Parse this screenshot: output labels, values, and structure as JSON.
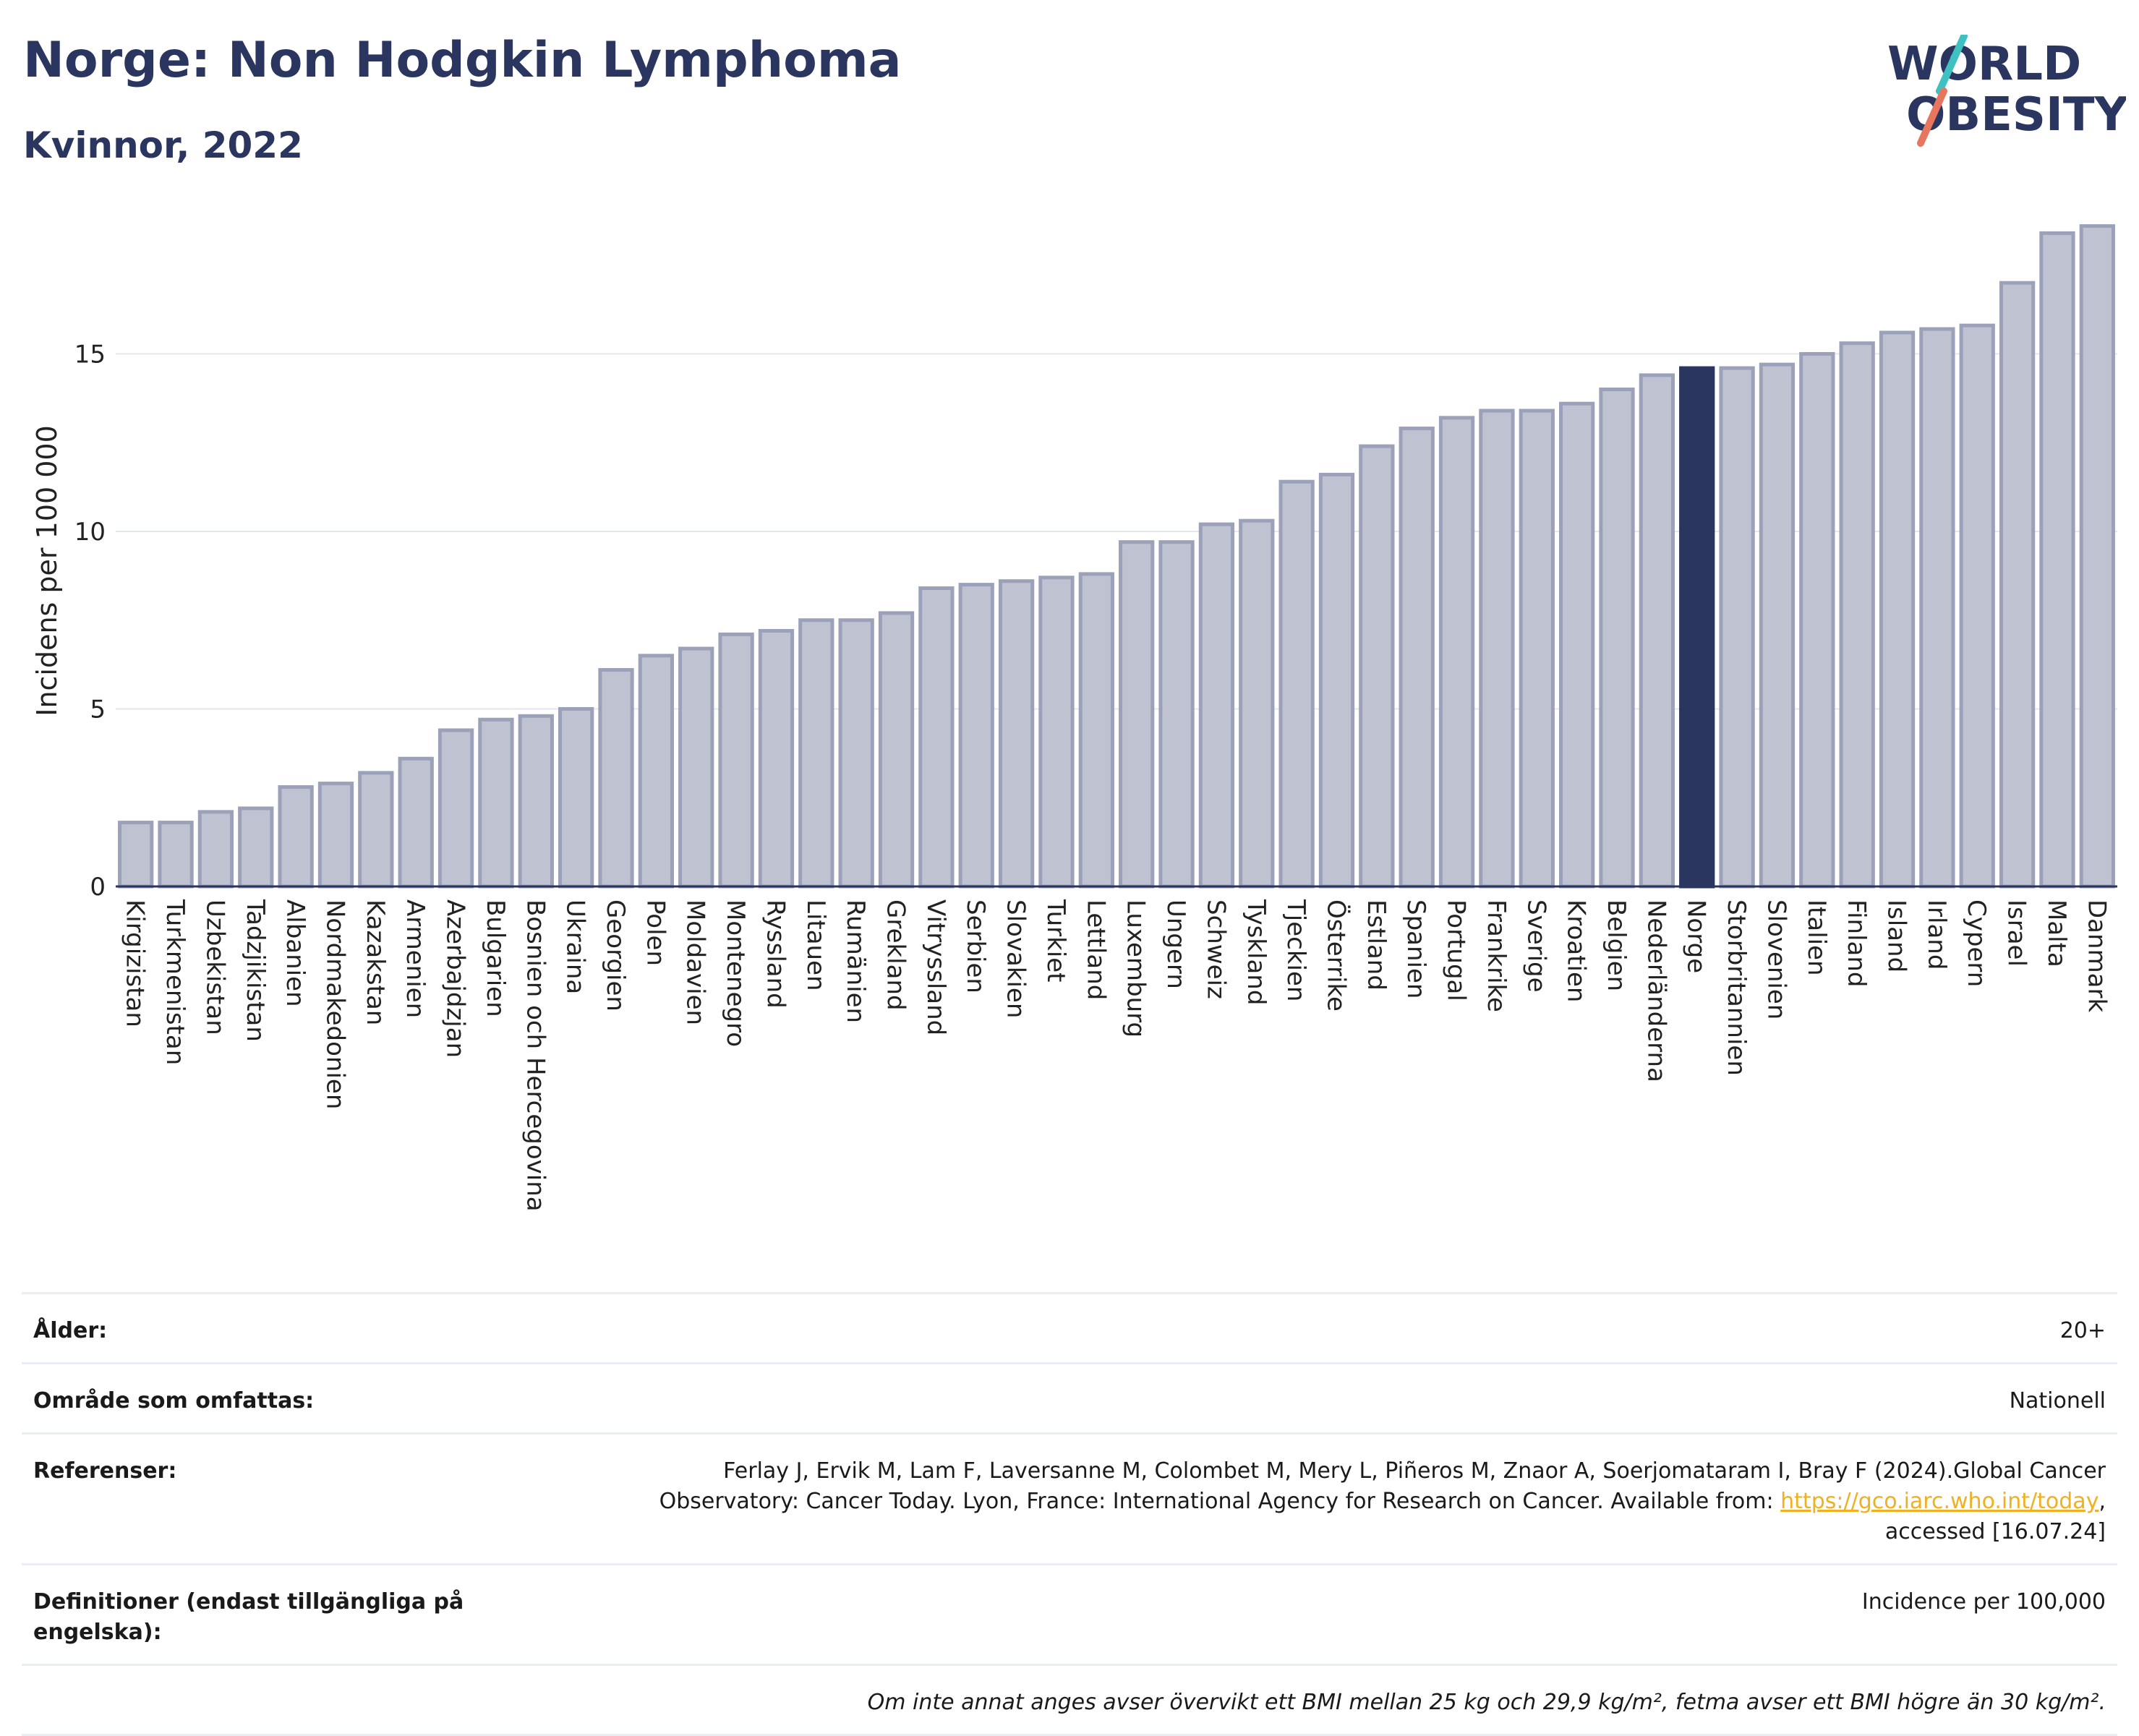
{
  "header": {
    "title": "Norge: Non Hodgkin Lymphoma",
    "subtitle": "Kvinnor, 2022"
  },
  "logo": {
    "line1": "WORLD",
    "line2": "OBESITY",
    "accent_colors": [
      "#3ec1c1",
      "#e8765f"
    ]
  },
  "colors": {
    "bar": "#bfc3d1",
    "bar_border": "#9aa1b9",
    "highlight": "#2a3560",
    "grid": "#e4e7ee",
    "axis": "#2a3560"
  },
  "chart_data": {
    "type": "bar",
    "title": "Norge: Non Hodgkin Lymphoma",
    "subtitle": "Kvinnor, 2022",
    "ylabel": "Incidens per 100 000",
    "xlabel": "",
    "ylim": [
      0,
      19
    ],
    "yticks": [
      0,
      5,
      10,
      15
    ],
    "grid": true,
    "highlight": "Norge",
    "categories": [
      "Kirgizistan",
      "Turkmenistan",
      "Uzbekistan",
      "Tadzjikistan",
      "Albanien",
      "Nordmakedonien",
      "Kazakstan",
      "Armenien",
      "Azerbajdzjan",
      "Bulgarien",
      "Bosnien och Hercegovina",
      "Ukraina",
      "Georgien",
      "Polen",
      "Moldavien",
      "Montenegro",
      "Ryssland",
      "Litauen",
      "Rumänien",
      "Grekland",
      "Vitryssland",
      "Serbien",
      "Slovakien",
      "Turkiet",
      "Lettland",
      "Luxemburg",
      "Ungern",
      "Schweiz",
      "Tyskland",
      "Tjeckien",
      "Österrike",
      "Estland",
      "Spanien",
      "Portugal",
      "Frankrike",
      "Sverige",
      "Kroatien",
      "Belgien",
      "Nederländerna",
      "Norge",
      "Storbritannien",
      "Slovenien",
      "Italien",
      "Finland",
      "Island",
      "Irland",
      "Cypern",
      "Israel",
      "Malta",
      "Danmark"
    ],
    "values": [
      1.8,
      1.8,
      2.1,
      2.2,
      2.8,
      2.9,
      3.2,
      3.6,
      4.4,
      4.7,
      4.8,
      5.0,
      6.1,
      6.5,
      6.7,
      7.1,
      7.2,
      7.5,
      7.5,
      7.7,
      8.4,
      8.5,
      8.6,
      8.7,
      8.8,
      9.7,
      9.7,
      10.2,
      10.3,
      11.4,
      11.6,
      12.4,
      12.9,
      13.2,
      13.4,
      13.4,
      13.6,
      14.0,
      14.4,
      14.6,
      14.6,
      14.7,
      15.0,
      15.3,
      15.6,
      15.7,
      15.8,
      17.0,
      18.4,
      18.6
    ]
  },
  "info": {
    "age_label": "Ålder:",
    "age_value": "20+",
    "area_label": "Område som omfattas:",
    "area_value": "Nationell",
    "refs_label": "Referenser:",
    "refs_text_1": "Ferlay J, Ervik M, Lam F, Laversanne M, Colombet M, Mery L, Piñeros M, Znaor A, Soerjomataram I, Bray F (2024).Global Cancer",
    "refs_text_2": "Observatory: Cancer Today. Lyon, France: International Agency for Research on Cancer. Available from: ",
    "refs_link": "https://gco.iarc.who.int/today",
    "refs_text_3": ",",
    "refs_text_4": "accessed [16.07.24]",
    "def_label": "Definitioner (endast tillgängliga på engelska):",
    "def_value": "Incidence per 100,000",
    "note": "Om inte annat anges avser övervikt ett BMI mellan 25 kg och 29,9 kg/m², fetma avser ett BMI högre än 30 kg/m²."
  }
}
